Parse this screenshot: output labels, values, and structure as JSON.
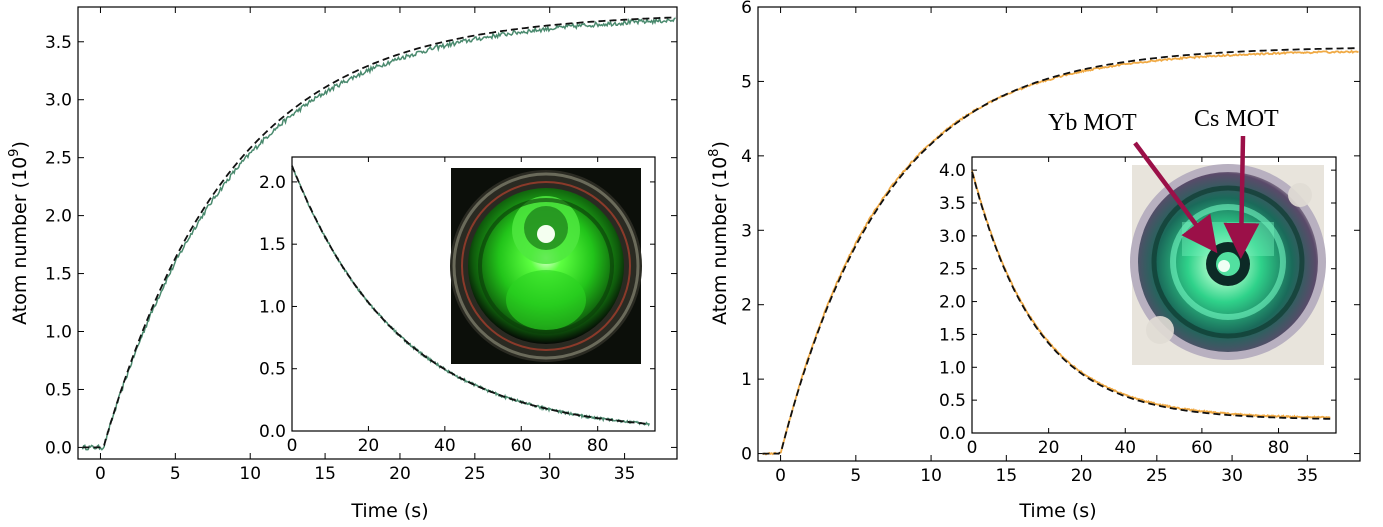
{
  "chart_data": [
    {
      "type": "line",
      "panel": "left-main",
      "xlabel": "Time  (s)",
      "ylabel": "Atom number (10",
      "ylabel_exp": "9",
      "xlim": [
        -1.5,
        38.5
      ],
      "ylim": [
        -0.1,
        3.8
      ],
      "xticks": [
        0,
        5,
        10,
        15,
        20,
        25,
        30,
        35
      ],
      "yticks": [
        "0.0",
        "0.5",
        "1.0",
        "1.5",
        "2.0",
        "2.5",
        "3.0",
        "3.5"
      ],
      "series": [
        {
          "role": "data",
          "color": "#4a8a6e",
          "model": "load",
          "t0": 0.2,
          "amplitude": 3.73,
          "tau": 8.6,
          "baseline": 0.0,
          "noise": 0.02
        },
        {
          "role": "fit",
          "color": "#111111",
          "model": "load",
          "t0": 0.2,
          "amplitude": 3.75,
          "tau": 8.4,
          "baseline": 0.0
        }
      ]
    },
    {
      "type": "line",
      "panel": "left-inset",
      "xlim": [
        0,
        95
      ],
      "ylim": [
        0,
        2.2
      ],
      "xticks": [
        0,
        20,
        40,
        60,
        80
      ],
      "yticks": [
        "0.0",
        "0.5",
        "1.0",
        "1.5",
        "2.0"
      ],
      "series": [
        {
          "role": "data",
          "color": "#4a8a6e",
          "model": "decay",
          "amplitude": 2.15,
          "tau": 28.0,
          "offset": -0.02,
          "noise": 0.01
        },
        {
          "role": "fit",
          "color": "#111111",
          "model": "decay",
          "amplitude": 2.15,
          "tau": 28.0,
          "offset": -0.02
        }
      ]
    },
    {
      "type": "line",
      "panel": "right-main",
      "xlabel": "Time  (s)",
      "ylabel": "Atom number (10",
      "ylabel_exp": "8",
      "xlim": [
        -1.5,
        38.5
      ],
      "ylim": [
        -0.1,
        6.0
      ],
      "xticks": [
        0,
        5,
        10,
        15,
        20,
        25,
        30,
        35
      ],
      "yticks": [
        "0",
        "1",
        "2",
        "3",
        "4",
        "5",
        "6"
      ],
      "series": [
        {
          "role": "data",
          "color": "#f0aa45",
          "model": "load",
          "t0": 0.0,
          "amplitude": 5.42,
          "tau": 6.8,
          "baseline": 0.0,
          "noise": 0.012
        },
        {
          "role": "fit",
          "color": "#111111",
          "model": "load",
          "t0": 0.0,
          "amplitude": 5.47,
          "tau": 7.0,
          "baseline": 0.0
        }
      ]
    },
    {
      "type": "line",
      "panel": "right-inset",
      "xlim": [
        0,
        95
      ],
      "ylim": [
        0,
        4.2
      ],
      "xticks": [
        0,
        20,
        40,
        60,
        80
      ],
      "yticks": [
        "0.0",
        "0.5",
        "1.0",
        "1.5",
        "2.0",
        "2.5",
        "3.0",
        "3.5",
        "4.0"
      ],
      "series": [
        {
          "role": "data",
          "color": "#f0aa45",
          "model": "decay",
          "amplitude": 3.78,
          "tau": 17.0,
          "offset": 0.22,
          "noise": 0.01
        },
        {
          "role": "fit",
          "color": "#111111",
          "model": "decay",
          "amplitude": 3.78,
          "tau": 17.0,
          "offset": 0.2
        }
      ]
    }
  ],
  "annotations": {
    "yb_label": "Yb MOT",
    "cs_label": "Cs MOT",
    "arrow_color": "#9b1048"
  },
  "photos": {
    "left": {
      "description_icon": "green-mot-photo",
      "glow": "#35ff2a",
      "dark": "#0c0f0a"
    },
    "right": {
      "description_icon": "cyan-green-mot-photo",
      "glow": "#45f0b0",
      "dark": "#1a1a2a"
    }
  }
}
